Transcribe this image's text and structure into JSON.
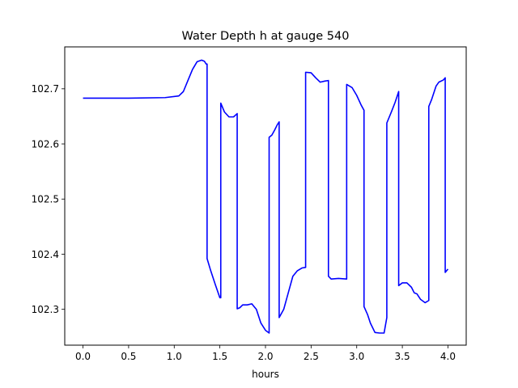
{
  "chart_data": {
    "type": "line",
    "title": "Water Depth h at gauge 540",
    "xlabel": "hours",
    "ylabel": "",
    "xlim": [
      -0.2,
      4.2
    ],
    "ylim": [
      102.235,
      102.776
    ],
    "xticks": [
      0.0,
      0.5,
      1.0,
      1.5,
      2.0,
      2.5,
      3.0,
      3.5,
      4.0
    ],
    "xtick_labels": [
      "0.0",
      "0.5",
      "1.0",
      "1.5",
      "2.0",
      "2.5",
      "3.0",
      "3.5",
      "4.0"
    ],
    "yticks": [
      102.3,
      102.4,
      102.5,
      102.6,
      102.7
    ],
    "ytick_labels": [
      "102.3",
      "102.4",
      "102.5",
      "102.6",
      "102.7"
    ],
    "grid": false,
    "series": [
      {
        "color": "#0000ff",
        "x": [
          0.0,
          0.5,
          0.9,
          1.05,
          1.1,
          1.15,
          1.2,
          1.25,
          1.3,
          1.33,
          1.35,
          1.36,
          1.36,
          1.4,
          1.45,
          1.5,
          1.51,
          1.51,
          1.55,
          1.6,
          1.65,
          1.69,
          1.69,
          1.72,
          1.75,
          1.8,
          1.85,
          1.9,
          1.95,
          2.0,
          2.04,
          2.04,
          2.07,
          2.1,
          2.13,
          2.15,
          2.15,
          2.2,
          2.25,
          2.3,
          2.35,
          2.4,
          2.44,
          2.44,
          2.5,
          2.55,
          2.6,
          2.65,
          2.69,
          2.69,
          2.72,
          2.8,
          2.89,
          2.89,
          2.95,
          3.0,
          3.05,
          3.08,
          3.08,
          3.12,
          3.15,
          3.2,
          3.25,
          3.3,
          3.33,
          3.33,
          3.38,
          3.42,
          3.46,
          3.46,
          3.5,
          3.55,
          3.6,
          3.63,
          3.66,
          3.7,
          3.75,
          3.79,
          3.79,
          3.82,
          3.87,
          3.9,
          3.95,
          3.97,
          3.97,
          4.0
        ],
        "y": [
          102.683,
          102.683,
          102.684,
          102.687,
          102.695,
          102.715,
          102.735,
          102.749,
          102.752,
          102.75,
          102.745,
          102.745,
          102.392,
          102.37,
          102.345,
          102.321,
          102.321,
          102.674,
          102.658,
          102.649,
          102.649,
          102.655,
          102.301,
          102.303,
          102.308,
          102.308,
          102.31,
          102.3,
          102.275,
          102.262,
          102.257,
          102.612,
          102.616,
          102.625,
          102.635,
          102.64,
          102.285,
          102.3,
          102.33,
          102.36,
          102.37,
          102.375,
          102.376,
          102.73,
          102.729,
          102.72,
          102.712,
          102.714,
          102.715,
          102.36,
          102.355,
          102.356,
          102.355,
          102.708,
          102.702,
          102.688,
          102.67,
          102.661,
          102.305,
          102.29,
          102.275,
          102.258,
          102.257,
          102.257,
          102.285,
          102.638,
          102.658,
          102.675,
          102.695,
          102.343,
          102.348,
          102.348,
          102.34,
          102.33,
          102.328,
          102.318,
          102.312,
          102.316,
          102.668,
          102.68,
          102.705,
          102.712,
          102.716,
          102.72,
          102.367,
          102.373
        ]
      }
    ]
  }
}
